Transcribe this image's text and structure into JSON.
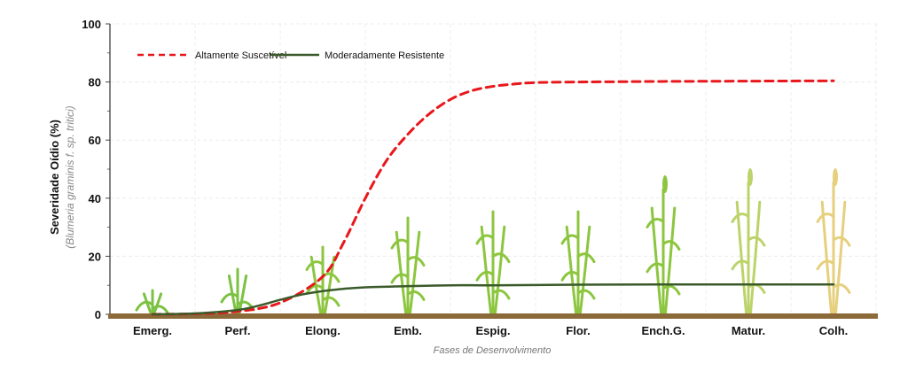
{
  "chart_data": {
    "type": "line",
    "title": "",
    "xlabel": "Fases de Desenvolvimento",
    "ylabel": "Severidade Oídio (%)",
    "ylabel_sub": "(Blumeria graminis f. sp. tritici)",
    "ylim": [
      0,
      100
    ],
    "yticks": [
      "0",
      "20",
      "40",
      "60",
      "80",
      "100"
    ],
    "categories": [
      "Emerg.",
      "Perf.",
      "Elong.",
      "Emb.",
      "Espig.",
      "Flor.",
      "Ench.G.",
      "Matur.",
      "Colh."
    ],
    "grid": true,
    "legend_position": "top-left",
    "series": [
      {
        "name": "Altamente Suscetível",
        "style": "dashed",
        "color": "#e8171b",
        "x": [
          0,
          0.5,
          1,
          1.5,
          2,
          2.25,
          2.5,
          2.75,
          3,
          3.25,
          3.5,
          3.75,
          4,
          4.25,
          4.5,
          5,
          5.5,
          6,
          7,
          8
        ],
        "values": [
          0,
          0.2,
          1,
          4,
          13,
          25,
          40,
          53,
          62,
          69,
          74,
          77,
          78.5,
          79.3,
          79.8,
          80,
          80.1,
          80.2,
          80.3,
          80.4
        ]
      },
      {
        "name": "Moderadamente Resistente",
        "style": "solid",
        "color": "#3a5a2a",
        "x": [
          0,
          0.5,
          1,
          1.25,
          1.5,
          1.75,
          2,
          2.25,
          2.5,
          3,
          3.5,
          4,
          5,
          6,
          7,
          8
        ],
        "values": [
          0,
          0.3,
          1.5,
          3,
          5,
          6.8,
          8,
          8.8,
          9.3,
          9.7,
          10,
          10,
          10.2,
          10.3,
          10.3,
          10.3
        ]
      }
    ]
  },
  "colors": {
    "ground": "#8b6a3a",
    "plant_young": "#7cc242",
    "plant_mid": "#8cc63f",
    "plant_late": "#bcd36a",
    "plant_ripe": "#e6cf7d"
  }
}
